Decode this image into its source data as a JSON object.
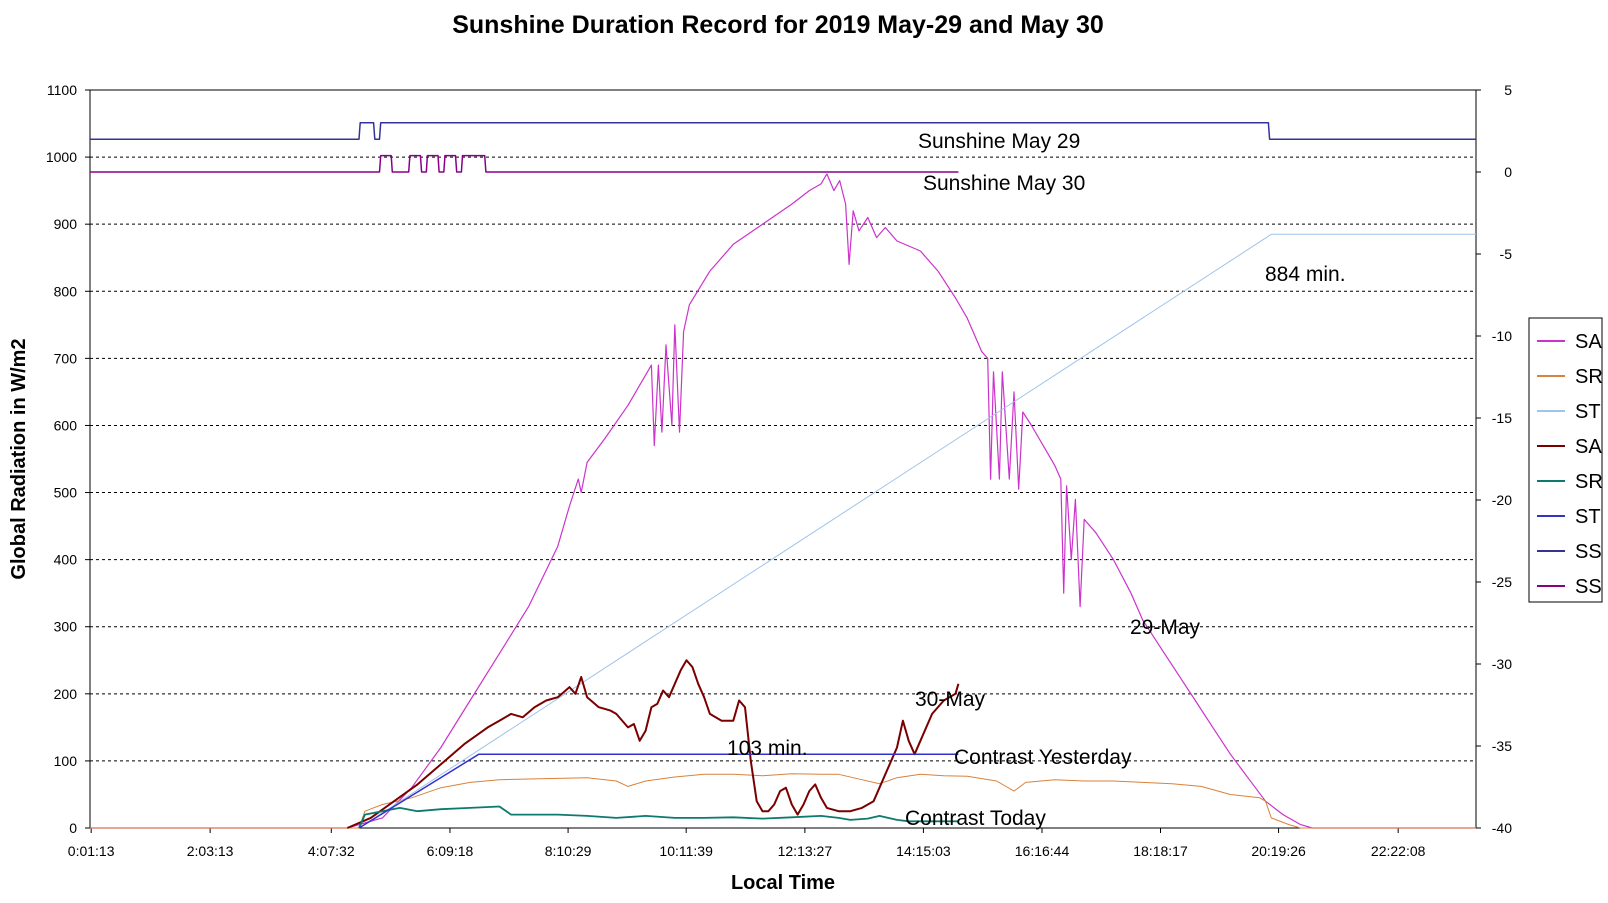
{
  "chart_data": {
    "type": "line",
    "title": "Sunshine Duration Record for 2019 May-29 and May 30",
    "xlabel": "Local Time",
    "ylabel": "Global Radiation in W/m2",
    "x_unit": "hours of day",
    "x_tick_labels": [
      "0:01:13",
      "2:03:13",
      "4:07:32",
      "6:09:18",
      "8:10:29",
      "10:11:39",
      "12:13:27",
      "14:15:03",
      "16:16:44",
      "18:18:17",
      "20:19:26",
      "22:22:08"
    ],
    "x_tick_hours": [
      0.02,
      2.054,
      4.126,
      6.155,
      8.175,
      10.194,
      12.224,
      14.251,
      16.279,
      18.305,
      20.324,
      22.369
    ],
    "xlim": [
      0.0,
      23.7
    ],
    "ylim": [
      0,
      1100
    ],
    "y_ticks": [
      0,
      100,
      200,
      300,
      400,
      500,
      600,
      700,
      800,
      900,
      1000,
      1100
    ],
    "y2lim": [
      -40,
      5
    ],
    "y2_ticks": [
      5,
      0,
      -5,
      -10,
      -15,
      -20,
      -25,
      -30,
      -35,
      -40
    ],
    "grid": "horizontal dashed",
    "legend_position": "right",
    "legend": [
      {
        "label": "SA",
        "color": "#cc33cc"
      },
      {
        "label": "SR",
        "color": "#d9823b"
      },
      {
        "label": "ST",
        "color": "#9ec4ea"
      },
      {
        "label": "SA",
        "color": "#7a0000"
      },
      {
        "label": "SR",
        "color": "#0d7a6e"
      },
      {
        "label": "ST",
        "color": "#3333cc"
      },
      {
        "label": "SS",
        "color": "#333399"
      },
      {
        "label": "SS",
        "color": "#880088"
      }
    ],
    "annotations": {
      "sunshine_may29": "Sunshine May 29",
      "sunshine_may30": "Sunshine May 30",
      "total_may29": "884 min.",
      "label_may29": "29-May",
      "label_may30": "30-May",
      "total_may30": "103 min.",
      "contrast_yesterday": "Contrast Yesterday",
      "contrast_today": "Contrast Today"
    },
    "series": [
      {
        "key": "sa29",
        "color": "#cc33cc",
        "width": 1.2,
        "points": [
          [
            0,
            0
          ],
          [
            4.4,
            0
          ],
          [
            5.0,
            15
          ],
          [
            5.5,
            60
          ],
          [
            6.0,
            120
          ],
          [
            6.5,
            190
          ],
          [
            7.0,
            260
          ],
          [
            7.5,
            330
          ],
          [
            8.0,
            420
          ],
          [
            8.2,
            480
          ],
          [
            8.35,
            520
          ],
          [
            8.4,
            500
          ],
          [
            8.5,
            545
          ],
          [
            8.8,
            580
          ],
          [
            9.2,
            630
          ],
          [
            9.4,
            660
          ],
          [
            9.6,
            690
          ],
          [
            9.65,
            570
          ],
          [
            9.72,
            690
          ],
          [
            9.78,
            590
          ],
          [
            9.85,
            720
          ],
          [
            9.95,
            600
          ],
          [
            10.0,
            750
          ],
          [
            10.08,
            590
          ],
          [
            10.15,
            740
          ],
          [
            10.25,
            780
          ],
          [
            10.6,
            830
          ],
          [
            11.0,
            870
          ],
          [
            11.5,
            900
          ],
          [
            12.0,
            930
          ],
          [
            12.3,
            950
          ],
          [
            12.5,
            960
          ],
          [
            12.6,
            975
          ],
          [
            12.72,
            950
          ],
          [
            12.82,
            965
          ],
          [
            12.92,
            930
          ],
          [
            12.98,
            840
          ],
          [
            13.05,
            920
          ],
          [
            13.15,
            890
          ],
          [
            13.3,
            910
          ],
          [
            13.45,
            880
          ],
          [
            13.6,
            895
          ],
          [
            13.8,
            875
          ],
          [
            14.2,
            860
          ],
          [
            14.5,
            830
          ],
          [
            14.8,
            790
          ],
          [
            15.0,
            760
          ],
          [
            15.25,
            710
          ],
          [
            15.35,
            700
          ],
          [
            15.4,
            520
          ],
          [
            15.45,
            680
          ],
          [
            15.55,
            520
          ],
          [
            15.6,
            680
          ],
          [
            15.72,
            520
          ],
          [
            15.8,
            650
          ],
          [
            15.88,
            505
          ],
          [
            15.95,
            620
          ],
          [
            16.1,
            600
          ],
          [
            16.3,
            570
          ],
          [
            16.5,
            540
          ],
          [
            16.6,
            520
          ],
          [
            16.65,
            350
          ],
          [
            16.7,
            510
          ],
          [
            16.78,
            400
          ],
          [
            16.85,
            490
          ],
          [
            16.93,
            330
          ],
          [
            17.0,
            460
          ],
          [
            17.2,
            440
          ],
          [
            17.5,
            400
          ],
          [
            17.8,
            350
          ],
          [
            18.0,
            310
          ],
          [
            18.3,
            270
          ],
          [
            18.6,
            230
          ],
          [
            18.9,
            190
          ],
          [
            19.2,
            150
          ],
          [
            19.5,
            110
          ],
          [
            19.8,
            75
          ],
          [
            20.1,
            40
          ],
          [
            20.4,
            20
          ],
          [
            20.7,
            5
          ],
          [
            20.9,
            0
          ],
          [
            23.7,
            0
          ]
        ]
      },
      {
        "key": "sr29",
        "color": "#d9823b",
        "width": 1.0,
        "points": [
          [
            0,
            0
          ],
          [
            4.6,
            0
          ],
          [
            4.7,
            25
          ],
          [
            5.0,
            35
          ],
          [
            5.5,
            45
          ],
          [
            6.0,
            60
          ],
          [
            6.5,
            68
          ],
          [
            7.0,
            72
          ],
          [
            7.5,
            73
          ],
          [
            8.0,
            74
          ],
          [
            8.5,
            75
          ],
          [
            9.0,
            70
          ],
          [
            9.2,
            62
          ],
          [
            9.5,
            70
          ],
          [
            10.0,
            76
          ],
          [
            10.5,
            80
          ],
          [
            11.0,
            80
          ],
          [
            11.5,
            78
          ],
          [
            12.0,
            81
          ],
          [
            12.5,
            80
          ],
          [
            12.8,
            80
          ],
          [
            13.2,
            72
          ],
          [
            13.5,
            66
          ],
          [
            13.8,
            75
          ],
          [
            14.2,
            80
          ],
          [
            14.6,
            78
          ],
          [
            15.0,
            77
          ],
          [
            15.5,
            70
          ],
          [
            15.8,
            55
          ],
          [
            16.0,
            68
          ],
          [
            16.5,
            72
          ],
          [
            17.0,
            70
          ],
          [
            17.5,
            70
          ],
          [
            18.0,
            68
          ],
          [
            18.5,
            66
          ],
          [
            19.0,
            62
          ],
          [
            19.5,
            50
          ],
          [
            20.0,
            45
          ],
          [
            20.1,
            40
          ],
          [
            20.2,
            15
          ],
          [
            20.5,
            5
          ],
          [
            20.7,
            0
          ],
          [
            23.7,
            0
          ]
        ]
      },
      {
        "key": "st29",
        "color": "#9ec4ea",
        "width": 1.0,
        "axis": "y2",
        "points": [
          [
            4.6,
            -40
          ],
          [
            20.2,
            -3.8
          ],
          [
            23.7,
            -3.8
          ]
        ]
      },
      {
        "key": "sa30",
        "color": "#7a0000",
        "width": 2.0,
        "points": [
          [
            4.4,
            0
          ],
          [
            4.8,
            15
          ],
          [
            5.2,
            40
          ],
          [
            5.6,
            65
          ],
          [
            6.0,
            95
          ],
          [
            6.4,
            125
          ],
          [
            6.8,
            150
          ],
          [
            7.0,
            160
          ],
          [
            7.2,
            170
          ],
          [
            7.4,
            165
          ],
          [
            7.6,
            180
          ],
          [
            7.8,
            190
          ],
          [
            8.0,
            195
          ],
          [
            8.2,
            210
          ],
          [
            8.3,
            200
          ],
          [
            8.4,
            225
          ],
          [
            8.5,
            195
          ],
          [
            8.7,
            180
          ],
          [
            8.9,
            175
          ],
          [
            9.0,
            170
          ],
          [
            9.2,
            150
          ],
          [
            9.3,
            155
          ],
          [
            9.4,
            130
          ],
          [
            9.5,
            145
          ],
          [
            9.6,
            180
          ],
          [
            9.7,
            185
          ],
          [
            9.8,
            205
          ],
          [
            9.9,
            195
          ],
          [
            10.0,
            215
          ],
          [
            10.1,
            235
          ],
          [
            10.2,
            250
          ],
          [
            10.3,
            240
          ],
          [
            10.4,
            215
          ],
          [
            10.5,
            195
          ],
          [
            10.6,
            170
          ],
          [
            10.8,
            160
          ],
          [
            11.0,
            160
          ],
          [
            11.1,
            190
          ],
          [
            11.2,
            180
          ],
          [
            11.3,
            100
          ],
          [
            11.4,
            40
          ],
          [
            11.5,
            25
          ],
          [
            11.6,
            25
          ],
          [
            11.7,
            35
          ],
          [
            11.8,
            55
          ],
          [
            11.9,
            60
          ],
          [
            12.0,
            35
          ],
          [
            12.1,
            20
          ],
          [
            12.2,
            35
          ],
          [
            12.3,
            55
          ],
          [
            12.4,
            65
          ],
          [
            12.5,
            45
          ],
          [
            12.6,
            30
          ],
          [
            12.8,
            25
          ],
          [
            13.0,
            25
          ],
          [
            13.2,
            30
          ],
          [
            13.4,
            40
          ],
          [
            13.6,
            80
          ],
          [
            13.8,
            120
          ],
          [
            13.9,
            160
          ],
          [
            14.0,
            130
          ],
          [
            14.1,
            110
          ],
          [
            14.2,
            130
          ],
          [
            14.4,
            170
          ],
          [
            14.6,
            190
          ],
          [
            14.8,
            200
          ],
          [
            14.85,
            215
          ]
        ]
      },
      {
        "key": "sr30",
        "color": "#0d7a6e",
        "width": 1.8,
        "points": [
          [
            4.6,
            0
          ],
          [
            4.7,
            20
          ],
          [
            5.0,
            25
          ],
          [
            5.3,
            30
          ],
          [
            5.6,
            25
          ],
          [
            6.0,
            28
          ],
          [
            6.5,
            30
          ],
          [
            7.0,
            32
          ],
          [
            7.2,
            20
          ],
          [
            7.5,
            20
          ],
          [
            8.0,
            20
          ],
          [
            8.5,
            18
          ],
          [
            9.0,
            15
          ],
          [
            9.5,
            18
          ],
          [
            10.0,
            15
          ],
          [
            10.5,
            15
          ],
          [
            11.0,
            16
          ],
          [
            11.5,
            14
          ],
          [
            12.0,
            16
          ],
          [
            12.5,
            18
          ],
          [
            12.8,
            15
          ],
          [
            13.0,
            12
          ],
          [
            13.3,
            14
          ],
          [
            13.5,
            18
          ],
          [
            13.8,
            12
          ],
          [
            14.0,
            10
          ],
          [
            14.5,
            10
          ],
          [
            14.85,
            10
          ]
        ]
      },
      {
        "key": "st30",
        "color": "#3333cc",
        "width": 1.5,
        "axis": "y2",
        "points": [
          [
            4.6,
            -40
          ],
          [
            6.65,
            -35.5
          ],
          [
            14.85,
            -35.5
          ]
        ]
      },
      {
        "key": "ss29",
        "color": "#333399",
        "width": 1.5,
        "axis": "y2",
        "points": [
          [
            0,
            2
          ],
          [
            4.6,
            2
          ],
          [
            4.62,
            3
          ],
          [
            4.85,
            3
          ],
          [
            4.87,
            2
          ],
          [
            4.95,
            2
          ],
          [
            4.97,
            3
          ],
          [
            20.15,
            3
          ],
          [
            20.17,
            2
          ],
          [
            23.7,
            2
          ]
        ]
      },
      {
        "key": "ss30",
        "color": "#880088",
        "width": 1.5,
        "axis": "y2",
        "points": [
          [
            0,
            0
          ],
          [
            4.95,
            0
          ],
          [
            4.97,
            1
          ],
          [
            5.15,
            1
          ],
          [
            5.17,
            0
          ],
          [
            5.45,
            0
          ],
          [
            5.47,
            1
          ],
          [
            5.65,
            1
          ],
          [
            5.67,
            0
          ],
          [
            5.75,
            0
          ],
          [
            5.77,
            1
          ],
          [
            5.95,
            1
          ],
          [
            5.97,
            0
          ],
          [
            6.05,
            0
          ],
          [
            6.07,
            1
          ],
          [
            6.25,
            1
          ],
          [
            6.27,
            0
          ],
          [
            6.35,
            0
          ],
          [
            6.37,
            1
          ],
          [
            6.75,
            1
          ],
          [
            6.77,
            0
          ],
          [
            14.85,
            0
          ]
        ]
      }
    ]
  }
}
